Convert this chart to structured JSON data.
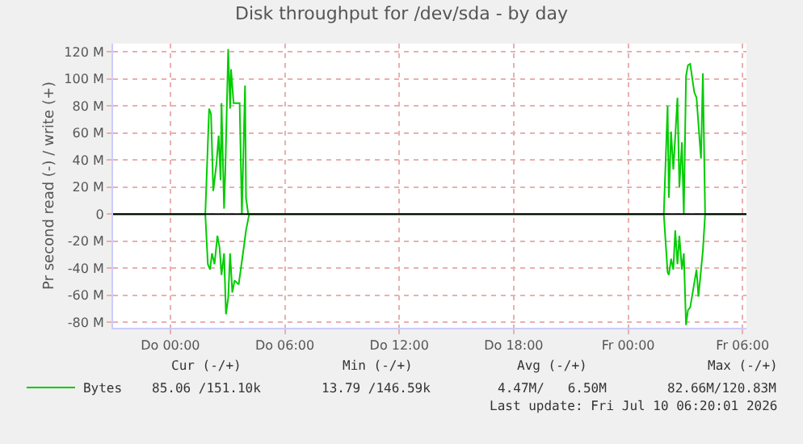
{
  "chart_data": {
    "type": "line",
    "title": "Disk throughput for /dev/sda - by day",
    "ylabel": "Pr second read (-) / write (+)",
    "xlim": [
      "2026-07-08T21:00",
      "2026-07-10T06:12"
    ],
    "xticks": [
      {
        "value": "2026-07-09T00:00",
        "label": "Do 00:00"
      },
      {
        "value": "2026-07-09T06:00",
        "label": "Do 06:00"
      },
      {
        "value": "2026-07-09T12:00",
        "label": "Do 12:00"
      },
      {
        "value": "2026-07-09T18:00",
        "label": "Do 18:00"
      },
      {
        "value": "2026-07-10T00:00",
        "label": "Fr 00:00"
      },
      {
        "value": "2026-07-10T06:00",
        "label": "Fr 06:00"
      }
    ],
    "ylim": [
      -84,
      126
    ],
    "yticks": [
      {
        "value": -80,
        "label": "-80 M"
      },
      {
        "value": -60,
        "label": "-60 M"
      },
      {
        "value": -40,
        "label": "-40 M"
      },
      {
        "value": -20,
        "label": "-20 M"
      },
      0,
      {
        "value": 20,
        "label": "20 M"
      },
      {
        "value": 40,
        "label": "40 M"
      },
      {
        "value": 60,
        "label": "60 M"
      },
      {
        "value": 80,
        "label": "80 M"
      },
      {
        "value": 100,
        "label": "100 M"
      },
      {
        "value": 120,
        "label": "120 M"
      }
    ],
    "grid": true,
    "legend": "bottom left",
    "marker": "none",
    "line_style": "solid",
    "ref_lines": [
      {
        "axis": "y",
        "value": 0,
        "label": null,
        "color": "#000000"
      }
    ],
    "series": [
      {
        "name": "Bytes",
        "color": "#00cc00",
        "x": [
          "2026-07-08T21:00",
          "2026-07-09T01:50",
          "2026-07-09T02:02",
          "2026-07-09T02:08",
          "2026-07-09T02:15",
          "2026-07-09T02:25",
          "2026-07-09T02:32",
          "2026-07-09T02:38",
          "2026-07-09T02:41",
          "2026-07-09T02:49",
          "2026-07-09T02:53",
          "2026-07-09T03:02",
          "2026-07-09T03:08",
          "2026-07-09T03:11",
          "2026-07-09T03:19",
          "2026-07-09T03:25",
          "2026-07-09T03:38",
          "2026-07-09T03:45",
          "2026-07-09T03:55",
          "2026-07-09T03:58",
          "2026-07-09T04:05",
          "2026-07-10T01:52",
          "2026-07-10T02:04",
          "2026-07-10T02:08",
          "2026-07-10T02:15",
          "2026-07-10T02:22",
          "2026-07-10T02:28",
          "2026-07-10T02:35",
          "2026-07-10T02:41",
          "2026-07-10T02:49",
          "2026-07-10T02:55",
          "2026-07-10T03:02",
          "2026-07-10T03:08",
          "2026-07-10T03:15",
          "2026-07-10T03:28",
          "2026-07-10T03:35",
          "2026-07-10T03:49",
          "2026-07-10T03:55",
          "2026-07-10T04:02",
          "2026-07-10T06:12"
        ],
        "values": [
          0,
          0,
          78,
          74,
          17,
          37,
          58,
          25,
          82,
          4,
          33,
          122,
          78,
          107,
          82,
          82,
          82,
          0,
          95,
          12,
          0,
          0,
          80,
          12,
          61,
          33,
          57,
          86,
          20,
          53,
          0,
          102,
          110,
          111,
          90,
          86,
          41,
          104,
          0,
          0
        ]
      },
      {
        "color": "#00cc00",
        "x": [
          "2026-07-08T21:00",
          "2026-07-09T01:50",
          "2026-07-09T01:58",
          "2026-07-09T02:05",
          "2026-07-09T02:11",
          "2026-07-09T02:19",
          "2026-07-09T02:28",
          "2026-07-09T02:35",
          "2026-07-09T02:41",
          "2026-07-09T02:49",
          "2026-07-09T02:55",
          "2026-07-09T03:02",
          "2026-07-09T03:08",
          "2026-07-09T03:15",
          "2026-07-09T03:22",
          "2026-07-09T03:35",
          "2026-07-09T03:52",
          "2026-07-09T03:58",
          "2026-07-09T04:08",
          "2026-07-10T01:52",
          "2026-07-10T02:04",
          "2026-07-10T02:08",
          "2026-07-10T02:15",
          "2026-07-10T02:22",
          "2026-07-10T02:28",
          "2026-07-10T02:35",
          "2026-07-10T02:41",
          "2026-07-10T02:49",
          "2026-07-10T02:55",
          "2026-07-10T03:02",
          "2026-07-10T03:08",
          "2026-07-10T03:15",
          "2026-07-10T03:35",
          "2026-07-10T03:41",
          "2026-07-10T03:55",
          "2026-07-10T04:02",
          "2026-07-10T06:12"
        ],
        "values": [
          0,
          0,
          -37,
          -41,
          -29,
          -37,
          -16,
          -25,
          -45,
          -29,
          -74,
          -62,
          -29,
          -58,
          -49,
          -52,
          -23,
          -12,
          0,
          0,
          -43,
          -45,
          -33,
          -41,
          -12,
          -37,
          -16,
          -41,
          -29,
          -82,
          -71,
          -69,
          -41,
          -61,
          -27,
          0,
          0
        ]
      }
    ],
    "annotations": [
      "Cur (-/+)",
      "Min (-/+)",
      "Avg (-/+)",
      "Max (-/+)",
      "85.06 /151.10k",
      "13.79 /146.59k",
      "4.47M/   6.50M",
      "82.66M/120.83M",
      "Last update: Fri Jul 10 06:20:01 2026"
    ]
  }
}
